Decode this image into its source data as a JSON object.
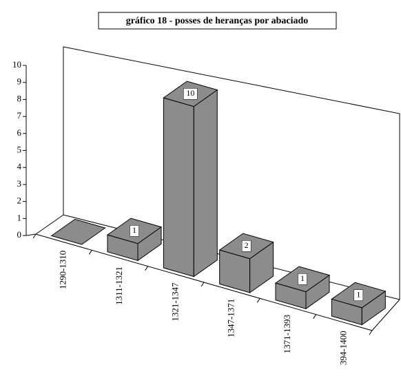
{
  "chart_data": {
    "type": "bar3d",
    "title": "gráfico 18 - posses de heranças por abaciado",
    "categories": [
      "1290-1310",
      "1311-1321",
      "1321-1347",
      "1347-1371",
      "1371-1393",
      "394-1400"
    ],
    "values": [
      0,
      1,
      10,
      2,
      1,
      1
    ],
    "color": "#8c8c8c",
    "ylim": [
      0,
      10
    ],
    "yticks": [
      0,
      1,
      2,
      3,
      4,
      5,
      6,
      7,
      8,
      9,
      10
    ]
  }
}
